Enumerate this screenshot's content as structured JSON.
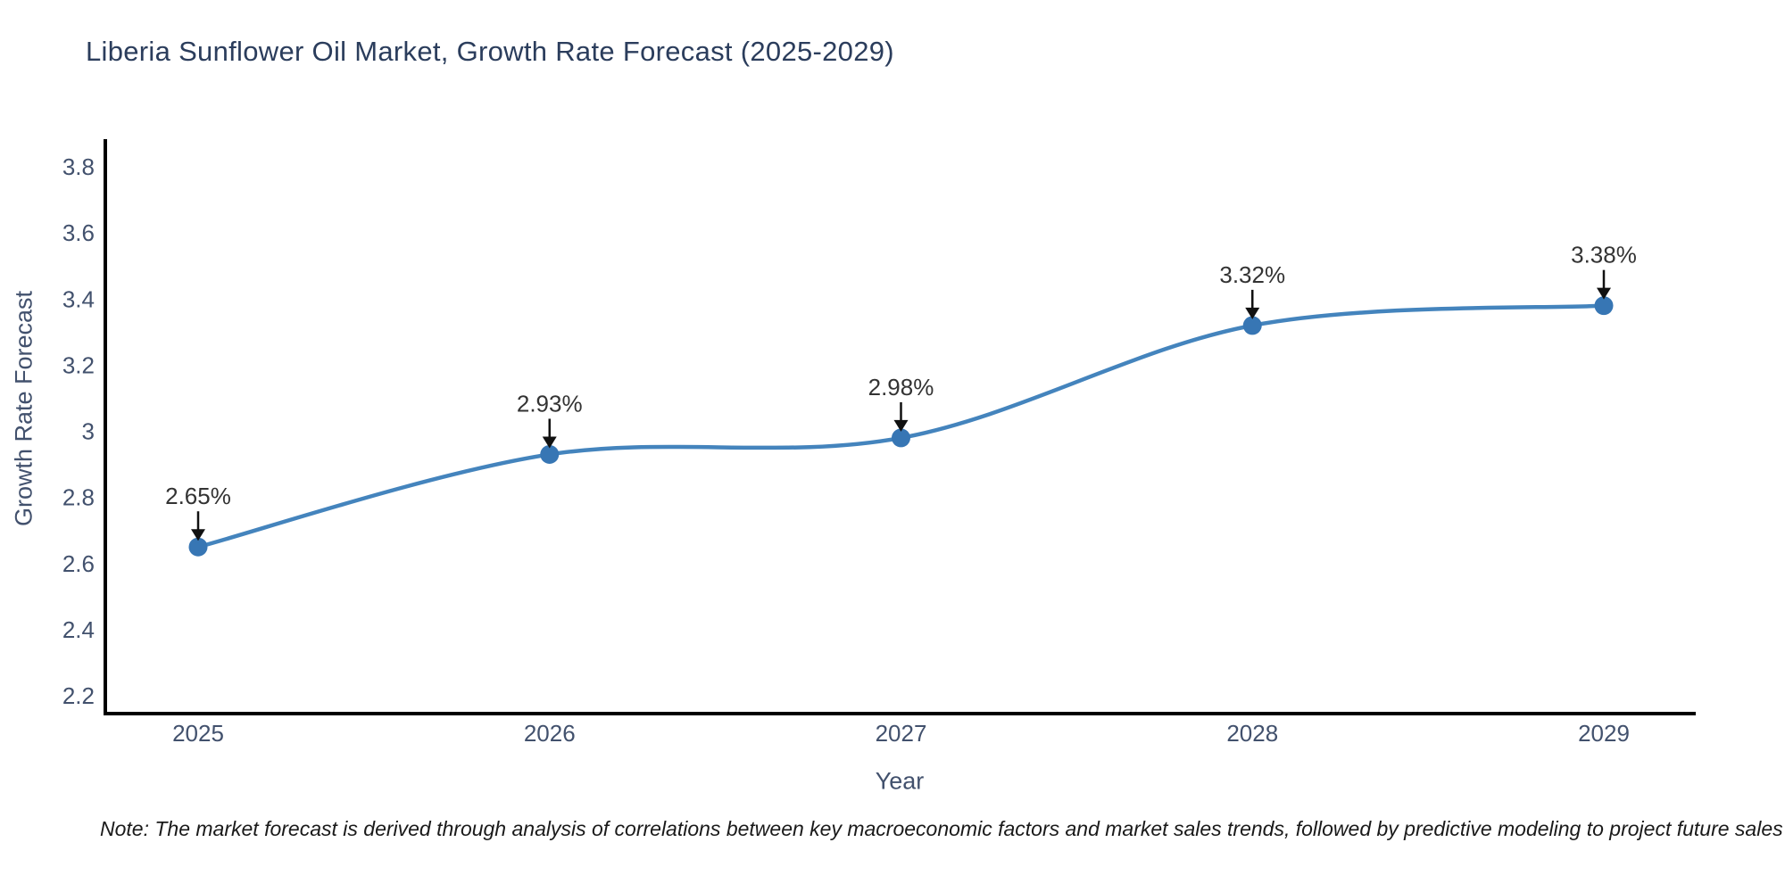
{
  "chart_data": {
    "type": "line",
    "title": "Liberia Sunflower Oil Market, Growth Rate Forecast (2025-2029)",
    "xlabel": "Year",
    "ylabel": "Growth Rate Forecast",
    "x": [
      2025,
      2026,
      2027,
      2028,
      2029
    ],
    "series": [
      {
        "name": "Growth Rate Forecast",
        "values": [
          2.65,
          2.93,
          2.98,
          3.32,
          3.38
        ]
      }
    ],
    "point_labels": [
      "2.65%",
      "2.93%",
      "2.98%",
      "3.32%",
      "3.38%"
    ],
    "yticks": [
      2.2,
      2.4,
      2.6,
      2.8,
      3,
      3.2,
      3.4,
      3.6,
      3.8
    ],
    "ylim": [
      2.14,
      3.88
    ],
    "line_shape": "spline",
    "grid": false,
    "legend_position": "none",
    "line_color": "#4484bd",
    "marker_color": "#3776b4",
    "axis_color": "#000000"
  },
  "note": "Note: The market forecast is derived through analysis of correlations between key macroeconomic factors and market sales trends, followed by predictive modeling to project future sales",
  "colors": {
    "title": "#2b3d5c",
    "tick_label": "#42516d",
    "annotation_text": "#333333",
    "annotation_arrow": "#111111",
    "note_text": "#1a1a1a",
    "background": "#ffffff"
  }
}
